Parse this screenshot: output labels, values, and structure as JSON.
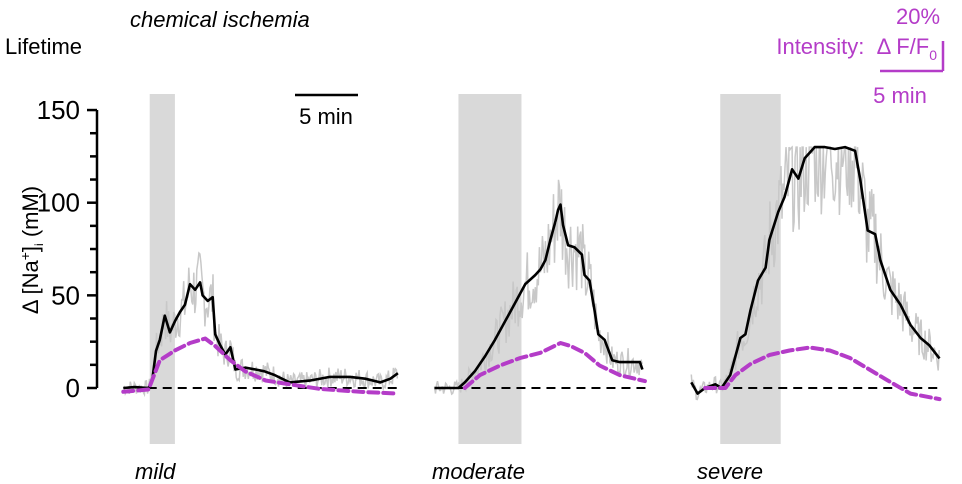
{
  "chart_data": {
    "type": "line",
    "title": "chemical ischemia",
    "measure_label": "Lifetime",
    "ylabel": "Δ [Na⁺]ᵢ (mM)",
    "ylabel_parts": {
      "prefix": "Δ [Na",
      "sup": "+",
      "mid": "]",
      "sub": "i",
      "suffix": " (mM)"
    },
    "ylim": [
      -10,
      150
    ],
    "yticks": [
      0,
      50,
      100,
      150
    ],
    "yticks_minor_step": 12.5,
    "time_unit": "min",
    "time_scalebar": {
      "value": 5,
      "label": "5 min"
    },
    "intensity_scalebar": {
      "label_prefix": "Intensity:",
      "label_unit": "Δ F/F",
      "label_unit_sub": "0",
      "vertical_value_percent": 20,
      "vertical_label": "20%",
      "horizontal_label": "5 min"
    },
    "colors": {
      "lifetime": "#000000",
      "raw": "#c8c8c8",
      "intensity": "#b43cc8",
      "stimulus": "#d9d9d9",
      "baseline": "#000000"
    },
    "grid": false,
    "panels": [
      {
        "label": "mild",
        "duration_min": 21.9,
        "stimulus_min": [
          2.2,
          4.2
        ],
        "lifetime_mM": {
          "t": [
            0.1,
            1.0,
            2.1,
            2.4,
            2.7,
            3.0,
            3.4,
            3.8,
            4.2,
            4.6,
            5.0,
            5.4,
            5.8,
            6.2,
            6.4,
            6.8,
            7.2,
            7.4,
            7.8,
            8.2,
            8.6,
            9.0,
            9.8,
            10.6,
            11.3,
            12.1,
            13.3,
            14.9,
            16.5,
            18.1,
            19.3,
            20.5,
            21.3,
            21.9
          ],
          "v": [
            0,
            0.5,
            0,
            4,
            20,
            26,
            39,
            30,
            36,
            41,
            45,
            56,
            53,
            57,
            50,
            47,
            49,
            29,
            23,
            18,
            22,
            10,
            11,
            10,
            9,
            7,
            3,
            4,
            6,
            6,
            5,
            3,
            5,
            8
          ]
        },
        "intensity_percent": {
          "t": [
            0.1,
            2.1,
            3.0,
            4.2,
            5.4,
            6.6,
            7.4,
            8.6,
            9.8,
            11.4,
            13.3,
            15.7,
            18.9,
            21.9
          ],
          "v": [
            -2.5,
            -1,
            18.5,
            25,
            30,
            33,
            28,
            18.5,
            11,
            5,
            2.5,
            -0.6,
            -2.5,
            -3.7
          ]
        }
      },
      {
        "label": "moderate",
        "duration_min": 17.0,
        "stimulus_min": [
          2.1,
          7.1
        ],
        "lifetime_mM": {
          "t": [
            0.2,
            2.1,
            2.6,
            3.4,
            4.2,
            5.0,
            5.8,
            6.6,
            7.4,
            8.2,
            8.6,
            9.0,
            9.4,
            9.8,
            10.0,
            10.2,
            10.4,
            10.8,
            11.3,
            11.9,
            12.1,
            12.5,
            12.9,
            13.2,
            13.7,
            14.3,
            14.9,
            15.7,
            16.5,
            16.7
          ],
          "v": [
            0,
            0,
            3,
            9,
            17,
            26,
            36,
            46,
            56,
            61,
            64,
            69,
            80,
            90,
            96,
            99,
            88,
            77,
            76,
            72,
            61,
            58,
            42,
            29,
            26,
            15,
            14,
            14,
            14,
            10
          ]
        },
        "intensity_percent": {
          "t": [
            2.6,
            3.8,
            5.4,
            7.0,
            8.6,
            10.2,
            11.0,
            12.1,
            13.3,
            14.9,
            16.9
          ],
          "v": [
            0,
            8.6,
            15,
            20,
            23.5,
            30,
            28,
            23.5,
            15,
            8.6,
            4.6
          ]
        }
      },
      {
        "label": "severe",
        "duration_min": 20.0,
        "stimulus_min": [
          2.4,
          7.2
        ],
        "lifetime_mM": {
          "t": [
            0.1,
            0.6,
            1.2,
            2.0,
            2.5,
            3.2,
            4.0,
            4.4,
            4.8,
            5.4,
            6.0,
            6.3,
            7.0,
            7.5,
            8.1,
            8.6,
            9.1,
            9.9,
            10.7,
            11.5,
            12.3,
            13.1,
            13.5,
            14.1,
            14.7,
            15.1,
            15.9,
            16.7,
            17.5,
            18.3,
            19.0,
            19.8
          ],
          "v": [
            3,
            -3,
            0,
            2,
            0,
            7,
            27,
            29,
            42,
            58,
            65,
            80,
            95,
            103,
            118,
            113,
            124,
            130,
            130,
            129,
            130,
            128,
            113,
            85,
            83,
            69,
            53,
            45,
            34,
            27,
            23,
            16
          ]
        },
        "intensity_percent": {
          "t": [
            1.2,
            2.8,
            3.6,
            4.8,
            6.3,
            7.9,
            9.5,
            11.1,
            12.7,
            14.3,
            15.9,
            17.5,
            19.8
          ],
          "v": [
            0,
            0,
            8.6,
            16,
            22,
            25,
            27,
            25,
            20,
            12,
            4,
            -3.7,
            -7.4
          ]
        }
      }
    ]
  }
}
